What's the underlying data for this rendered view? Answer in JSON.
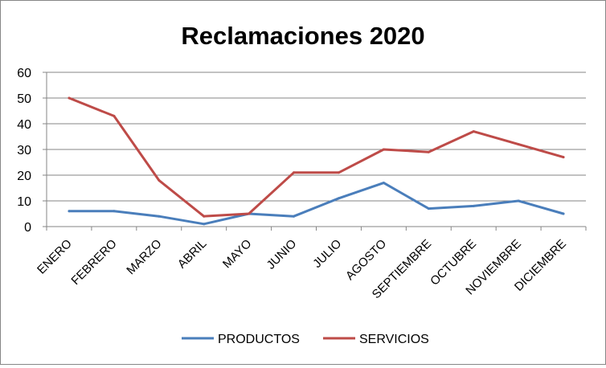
{
  "chart_data": {
    "type": "line",
    "title": "Reclamaciones 2020",
    "xlabel": "",
    "ylabel": "",
    "categories": [
      "ENERO",
      "FEBRERO",
      "MARZO",
      "ABRIL",
      "MAYO",
      "JUNIO",
      "JULIO",
      "AGOSTO",
      "SEPTIEMBRE",
      "OCTUBRE",
      "NOVIEMBRE",
      "DICIEMBRE"
    ],
    "yticks": [
      "0",
      "10",
      "20",
      "30",
      "40",
      "50",
      "60"
    ],
    "ylim": [
      0,
      60
    ],
    "grid": "horizontal",
    "legend_position": "bottom",
    "series": [
      {
        "name": "PRODUCTOS",
        "color": "#4a7ebb",
        "values": [
          6,
          6,
          4,
          1,
          5,
          4,
          11,
          17,
          7,
          8,
          10,
          5
        ]
      },
      {
        "name": "SERVICIOS",
        "color": "#be4b48",
        "values": [
          50,
          43,
          18,
          4,
          5,
          21,
          21,
          30,
          29,
          37,
          32,
          27
        ]
      }
    ]
  }
}
